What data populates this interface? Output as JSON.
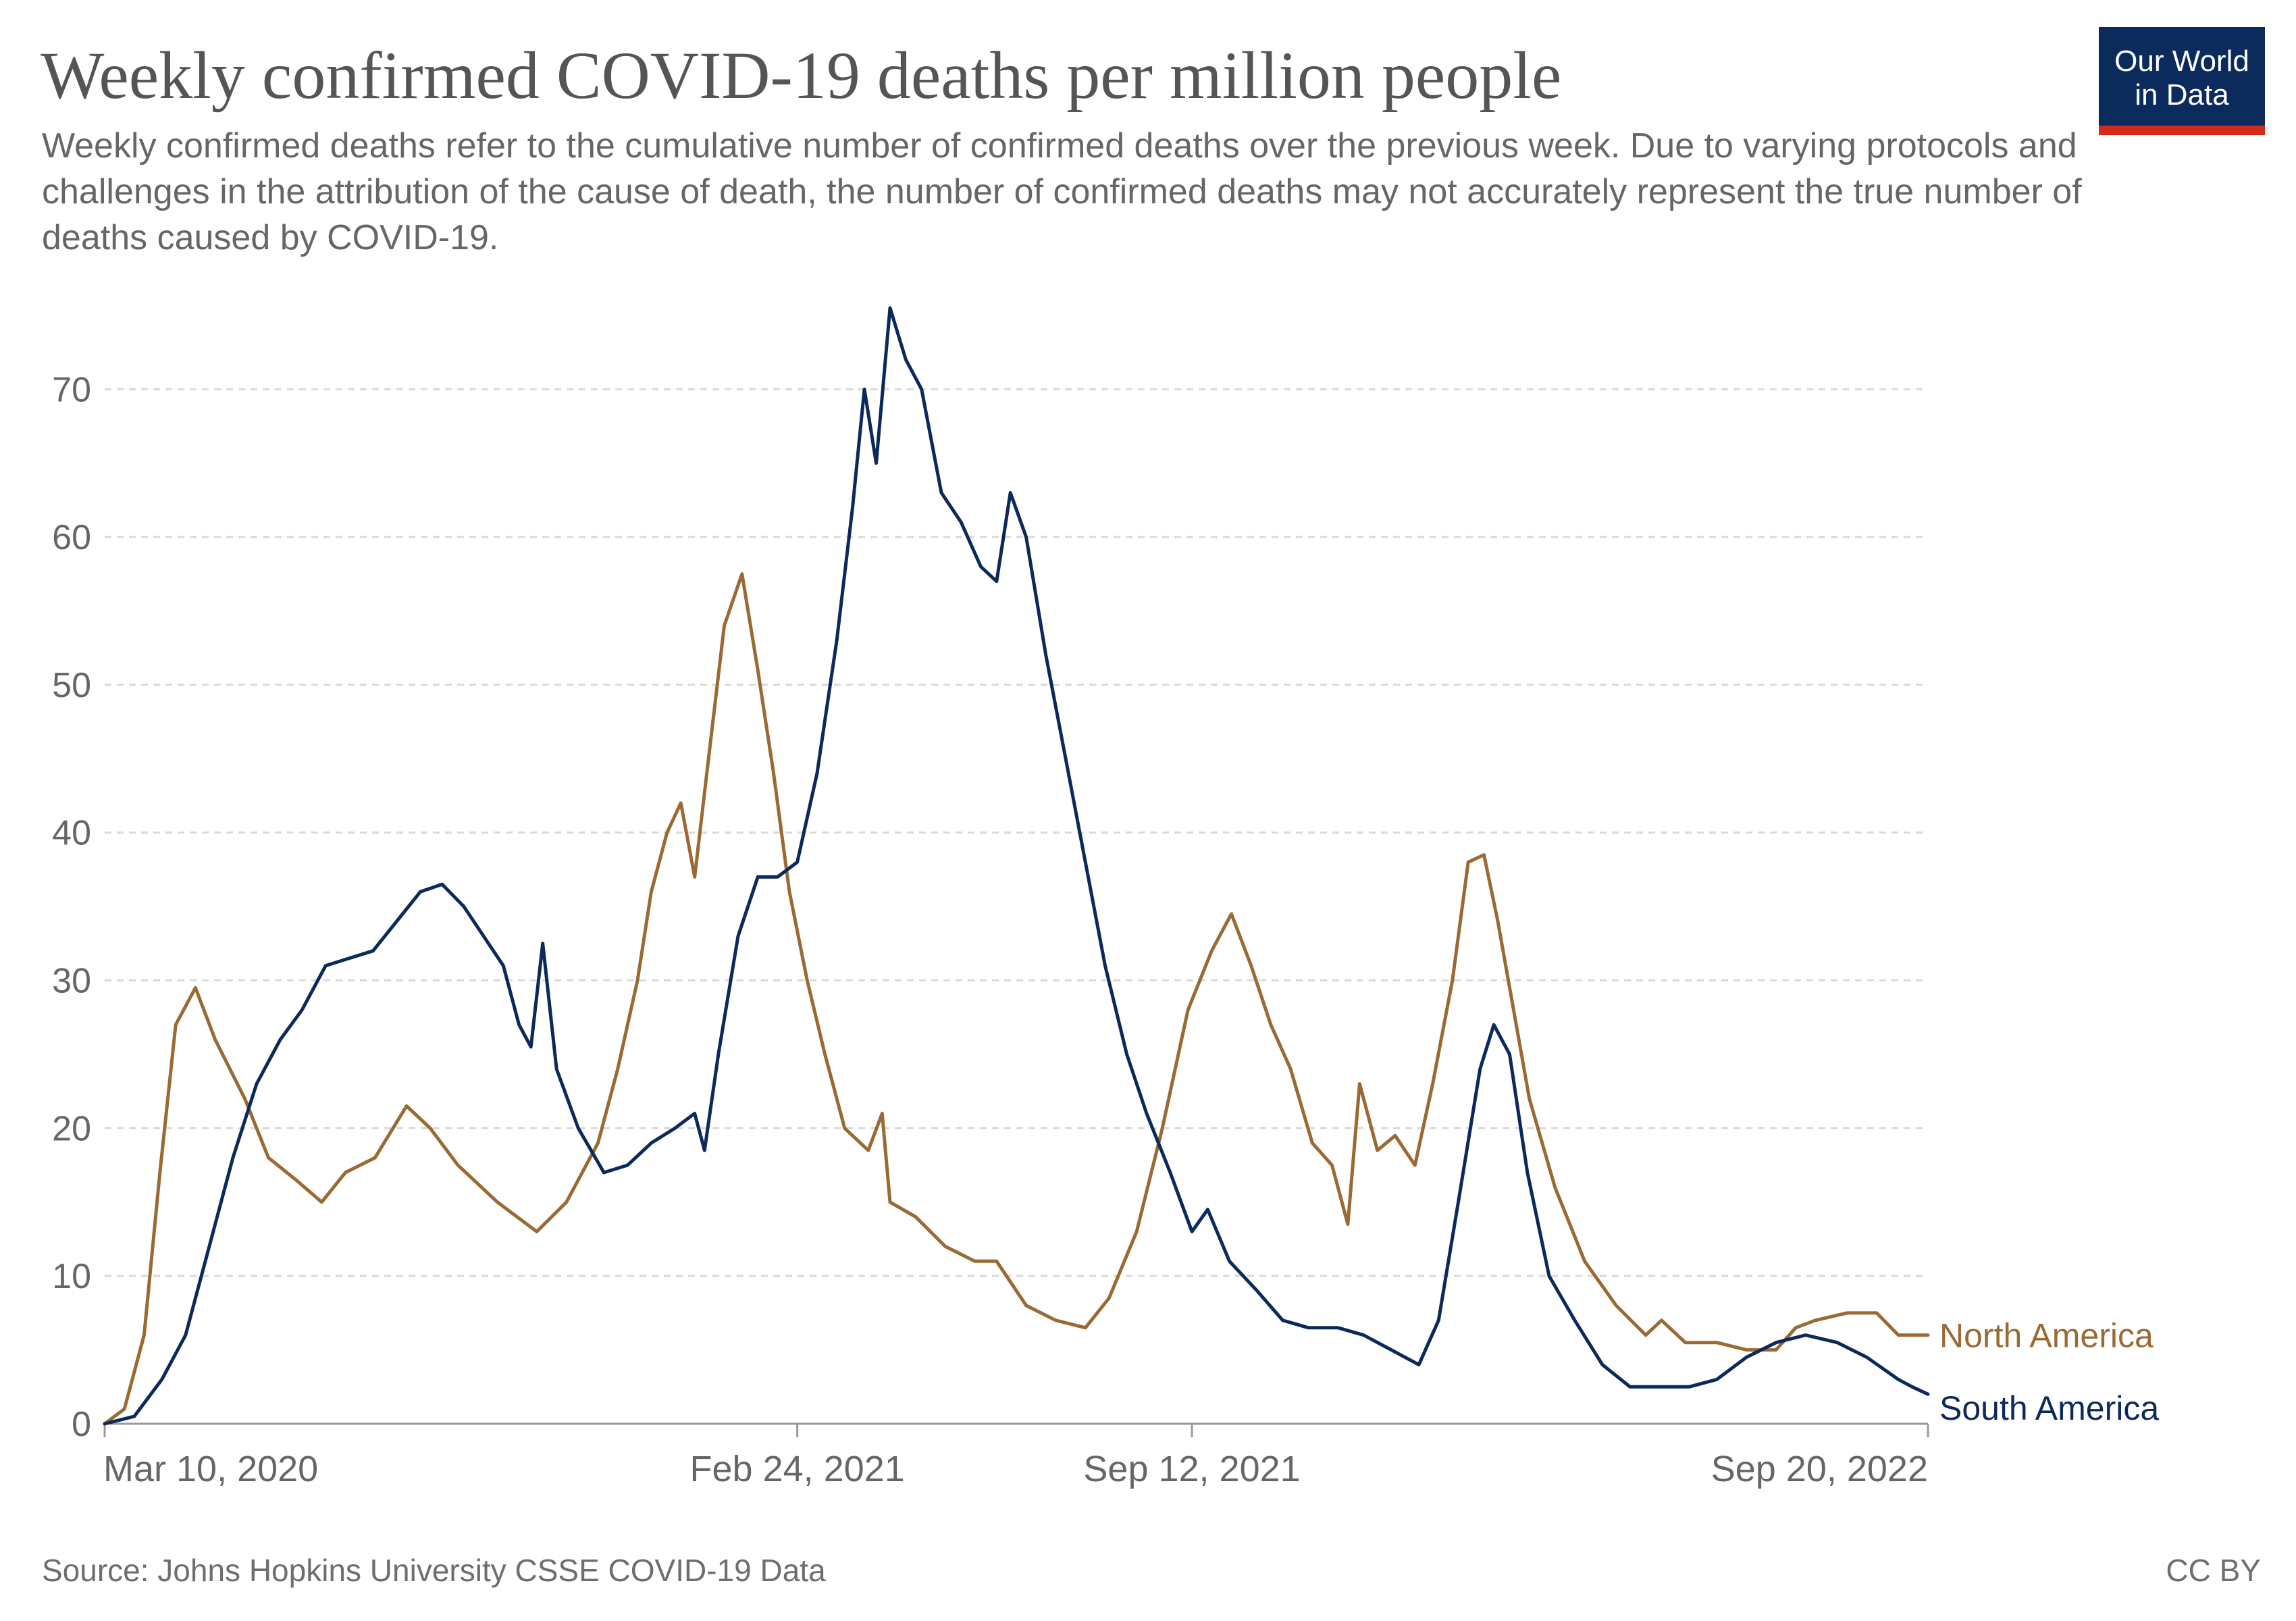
{
  "title": "Weekly confirmed COVID-19 deaths per million people",
  "subtitle": "Weekly confirmed deaths refer to the cumulative number of confirmed deaths over the previous week. Due to varying protocols and challenges in the attribution of the cause of death, the number of confirmed deaths may not accurately represent the true number of deaths caused by COVID-19.",
  "logo": {
    "text": "Our World\nin Data",
    "background": "#0a2b5c",
    "accent": "#d42a1c"
  },
  "footer": {
    "source": "Source: Johns Hopkins University CSSE COVID-19 Data",
    "license": "CC BY"
  },
  "chart_data": {
    "type": "line",
    "title": "Weekly confirmed COVID-19 deaths per million people",
    "xlabel": "",
    "ylabel": "",
    "x_range": [
      "2020-03-10",
      "2022-09-20"
    ],
    "ylim": [
      0,
      76
    ],
    "y_ticks": [
      0,
      10,
      20,
      30,
      40,
      50,
      60,
      70
    ],
    "y_tick_labels": [
      "0",
      "10",
      "20",
      "30",
      "40",
      "50",
      "60",
      "70"
    ],
    "x_ticks": [
      "2020-03-10",
      "2021-02-24",
      "2021-09-12",
      "2022-09-20"
    ],
    "x_tick_labels": [
      "Mar 10, 2020",
      "Feb 24, 2021",
      "Sep 12, 2021",
      "Sep 20, 2022"
    ],
    "grid": "horizontal dashed",
    "legend": "line-end labels at right",
    "series": [
      {
        "name": "North America",
        "color": "#9a6a34",
        "points": [
          [
            "2020-03-10",
            0
          ],
          [
            "2020-03-20",
            1
          ],
          [
            "2020-03-30",
            6
          ],
          [
            "2020-04-07",
            17
          ],
          [
            "2020-04-15",
            27
          ],
          [
            "2020-04-25",
            29.5
          ],
          [
            "2020-05-05",
            26
          ],
          [
            "2020-05-20",
            22
          ],
          [
            "2020-06-01",
            18
          ],
          [
            "2020-06-15",
            16.5
          ],
          [
            "2020-06-28",
            15
          ],
          [
            "2020-07-10",
            17
          ],
          [
            "2020-07-25",
            18
          ],
          [
            "2020-08-10",
            21.5
          ],
          [
            "2020-08-22",
            20
          ],
          [
            "2020-09-05",
            17.5
          ],
          [
            "2020-09-25",
            15
          ],
          [
            "2020-10-15",
            13
          ],
          [
            "2020-10-30",
            15
          ],
          [
            "2020-11-15",
            19
          ],
          [
            "2020-11-25",
            24
          ],
          [
            "2020-12-05",
            30
          ],
          [
            "2020-12-12",
            36
          ],
          [
            "2020-12-20",
            40
          ],
          [
            "2020-12-27",
            42
          ],
          [
            "2021-01-03",
            37
          ],
          [
            "2021-01-10",
            45
          ],
          [
            "2021-01-18",
            54
          ],
          [
            "2021-01-27",
            57.5
          ],
          [
            "2021-02-04",
            51
          ],
          [
            "2021-02-12",
            44
          ],
          [
            "2021-02-20",
            36
          ],
          [
            "2021-03-01",
            30
          ],
          [
            "2021-03-10",
            25
          ],
          [
            "2021-03-20",
            20
          ],
          [
            "2021-04-01",
            18.5
          ],
          [
            "2021-04-08",
            21
          ],
          [
            "2021-04-12",
            15
          ],
          [
            "2021-04-25",
            14
          ],
          [
            "2021-05-10",
            12
          ],
          [
            "2021-05-25",
            11
          ],
          [
            "2021-06-05",
            11
          ],
          [
            "2021-06-20",
            8
          ],
          [
            "2021-07-05",
            7
          ],
          [
            "2021-07-20",
            6.5
          ],
          [
            "2021-08-01",
            8.5
          ],
          [
            "2021-08-15",
            13
          ],
          [
            "2021-08-28",
            20
          ],
          [
            "2021-09-10",
            28
          ],
          [
            "2021-09-22",
            32
          ],
          [
            "2021-10-02",
            34.5
          ],
          [
            "2021-10-12",
            31
          ],
          [
            "2021-10-22",
            27
          ],
          [
            "2021-11-01",
            24
          ],
          [
            "2021-11-12",
            19
          ],
          [
            "2021-11-22",
            17.5
          ],
          [
            "2021-11-30",
            13.5
          ],
          [
            "2021-12-06",
            23
          ],
          [
            "2021-12-15",
            18.5
          ],
          [
            "2021-12-24",
            19.5
          ],
          [
            "2022-01-03",
            17.5
          ],
          [
            "2022-01-12",
            23
          ],
          [
            "2022-01-22",
            30
          ],
          [
            "2022-01-30",
            38
          ],
          [
            "2022-02-07",
            38.5
          ],
          [
            "2022-02-14",
            34
          ],
          [
            "2022-02-22",
            28
          ],
          [
            "2022-03-02",
            22
          ],
          [
            "2022-03-15",
            16
          ],
          [
            "2022-03-30",
            11
          ],
          [
            "2022-04-15",
            8
          ],
          [
            "2022-04-30",
            6
          ],
          [
            "2022-05-08",
            7
          ],
          [
            "2022-05-20",
            5.5
          ],
          [
            "2022-06-05",
            5.5
          ],
          [
            "2022-06-20",
            5
          ],
          [
            "2022-07-05",
            5
          ],
          [
            "2022-07-15",
            6.5
          ],
          [
            "2022-07-25",
            7
          ],
          [
            "2022-08-10",
            7.5
          ],
          [
            "2022-08-25",
            7.5
          ],
          [
            "2022-09-05",
            6
          ],
          [
            "2022-09-12",
            6
          ],
          [
            "2022-09-20",
            6
          ]
        ]
      },
      {
        "name": "South America",
        "color": "#0b2a5b",
        "points": [
          [
            "2020-03-10",
            0
          ],
          [
            "2020-03-25",
            0.5
          ],
          [
            "2020-04-08",
            3
          ],
          [
            "2020-04-20",
            6
          ],
          [
            "2020-05-02",
            12
          ],
          [
            "2020-05-14",
            18
          ],
          [
            "2020-05-26",
            23
          ],
          [
            "2020-06-07",
            26
          ],
          [
            "2020-06-18",
            28
          ],
          [
            "2020-06-30",
            31
          ],
          [
            "2020-07-12",
            31.5
          ],
          [
            "2020-07-24",
            32
          ],
          [
            "2020-08-05",
            34
          ],
          [
            "2020-08-17",
            36
          ],
          [
            "2020-08-28",
            36.5
          ],
          [
            "2020-09-08",
            35
          ],
          [
            "2020-09-18",
            33
          ],
          [
            "2020-09-28",
            31
          ],
          [
            "2020-10-06",
            27
          ],
          [
            "2020-10-12",
            25.5
          ],
          [
            "2020-10-18",
            32.5
          ],
          [
            "2020-10-25",
            24
          ],
          [
            "2020-11-05",
            20
          ],
          [
            "2020-11-18",
            17
          ],
          [
            "2020-11-30",
            17.5
          ],
          [
            "2020-12-12",
            19
          ],
          [
            "2020-12-24",
            20
          ],
          [
            "2021-01-03",
            21
          ],
          [
            "2021-01-08",
            18.5
          ],
          [
            "2021-01-15",
            25
          ],
          [
            "2021-01-25",
            33
          ],
          [
            "2021-02-04",
            37
          ],
          [
            "2021-02-14",
            37
          ],
          [
            "2021-02-24",
            38
          ],
          [
            "2021-03-06",
            44
          ],
          [
            "2021-03-16",
            53
          ],
          [
            "2021-03-24",
            62
          ],
          [
            "2021-03-30",
            70
          ],
          [
            "2021-04-05",
            65
          ],
          [
            "2021-04-12",
            75.5
          ],
          [
            "2021-04-20",
            72
          ],
          [
            "2021-04-28",
            70
          ],
          [
            "2021-05-08",
            63
          ],
          [
            "2021-05-18",
            61
          ],
          [
            "2021-05-28",
            58
          ],
          [
            "2021-06-05",
            57
          ],
          [
            "2021-06-12",
            63
          ],
          [
            "2021-06-20",
            60
          ],
          [
            "2021-06-30",
            52
          ],
          [
            "2021-07-10",
            45
          ],
          [
            "2021-07-20",
            38
          ],
          [
            "2021-07-30",
            31
          ],
          [
            "2021-08-10",
            25
          ],
          [
            "2021-08-20",
            21
          ],
          [
            "2021-09-01",
            17
          ],
          [
            "2021-09-12",
            13
          ],
          [
            "2021-09-20",
            14.5
          ],
          [
            "2021-10-01",
            11
          ],
          [
            "2021-10-15",
            9
          ],
          [
            "2021-10-28",
            7
          ],
          [
            "2021-11-10",
            6.5
          ],
          [
            "2021-11-25",
            6.5
          ],
          [
            "2021-12-08",
            6
          ],
          [
            "2021-12-22",
            5
          ],
          [
            "2022-01-05",
            4
          ],
          [
            "2022-01-15",
            7
          ],
          [
            "2022-01-25",
            15
          ],
          [
            "2022-02-05",
            24
          ],
          [
            "2022-02-12",
            27
          ],
          [
            "2022-02-20",
            25
          ],
          [
            "2022-03-01",
            17
          ],
          [
            "2022-03-12",
            10
          ],
          [
            "2022-03-25",
            7
          ],
          [
            "2022-04-08",
            4
          ],
          [
            "2022-04-22",
            2.5
          ],
          [
            "2022-05-08",
            2.5
          ],
          [
            "2022-05-22",
            2.5
          ],
          [
            "2022-06-05",
            3
          ],
          [
            "2022-06-20",
            4.5
          ],
          [
            "2022-07-05",
            5.5
          ],
          [
            "2022-07-20",
            6
          ],
          [
            "2022-08-05",
            5.5
          ],
          [
            "2022-08-20",
            4.5
          ],
          [
            "2022-09-05",
            3
          ],
          [
            "2022-09-12",
            2.5
          ],
          [
            "2022-09-20",
            2
          ]
        ]
      }
    ]
  }
}
